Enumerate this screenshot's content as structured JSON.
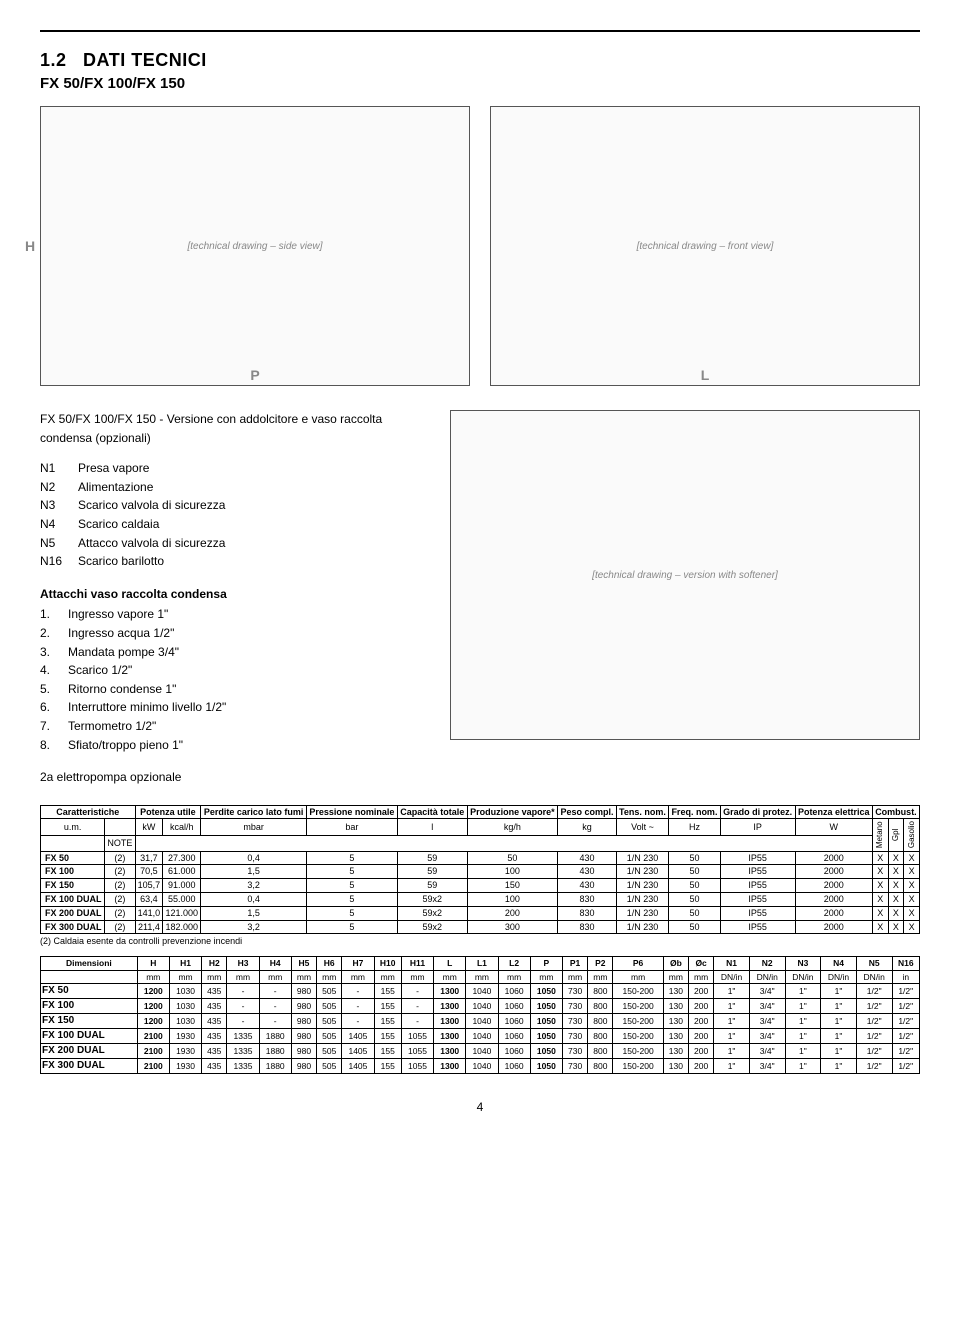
{
  "section_number": "1.2",
  "section_title": "DATI TECNICI",
  "subtitle": "FX 50/FX 100/FX 150",
  "version_line": "FX 50/FX 100/FX 150  - Versione con addolcitore e vaso raccolta condensa (opzionali)",
  "n_legend": [
    {
      "k": "N1",
      "v": "Presa vapore"
    },
    {
      "k": "N2",
      "v": "Alimentazione"
    },
    {
      "k": "N3",
      "v": "Scarico valvola di sicurezza"
    },
    {
      "k": "N4",
      "v": "Scarico caldaia"
    },
    {
      "k": "N5",
      "v": "Attacco valvola di sicurezza"
    },
    {
      "k": "N16",
      "v": "Scarico barilotto"
    }
  ],
  "attacchi_heading": "Attacchi vaso raccolta condensa",
  "attacchi_list": [
    {
      "k": "1.",
      "v": "Ingresso vapore 1\""
    },
    {
      "k": "2.",
      "v": "Ingresso acqua 1/2\""
    },
    {
      "k": "3.",
      "v": "Mandata pompe 3/4\""
    },
    {
      "k": "4.",
      "v": "Scarico 1/2\""
    },
    {
      "k": "5.",
      "v": "Ritorno condense 1\""
    },
    {
      "k": "6.",
      "v": "Interruttore minimo livello 1/2\""
    },
    {
      "k": "7.",
      "v": "Termometro 1/2\""
    },
    {
      "k": "8.",
      "v": "Sfiato/troppo pieno 1\""
    }
  ],
  "pump_note": "2a elettropompa opzionale",
  "diagram_labels": {
    "P": "P",
    "L": "L",
    "H": "H"
  },
  "char_table": {
    "headers": {
      "c1": "Caratteristiche",
      "c2": "Potenza utile",
      "c3": "Perdite carico lato fumi",
      "c4": "Pressione nominale",
      "c5": "Capacità totale",
      "c6": "Produzione vapore*",
      "c7": "Peso compl.",
      "c8": "Tens. nom.",
      "c9": "Freq. nom.",
      "c10": "Grado di protez.",
      "c11": "Potenza elettrica",
      "c12": "Combust."
    },
    "units": {
      "u1": "u.m.",
      "u2a": "kW",
      "u2b": "kcal/h",
      "u3": "mbar",
      "u4": "bar",
      "u5": "l",
      "u6": "kg/h",
      "u7": "kg",
      "u8": "Volt ~",
      "u9": "Hz",
      "u10": "IP",
      "u11": "W"
    },
    "fuel_cols": [
      "Metano",
      "Gpl",
      "Gasolio"
    ],
    "note_label": "NOTE",
    "rows": [
      {
        "m": "FX 50",
        "note": "(2)",
        "kw": "31,7",
        "kcal": "27.300",
        "pc": "0,4",
        "pn": "5",
        "ct": "59",
        "pv": "50",
        "pc2": "430",
        "tn": "1/N 230",
        "fn": "50",
        "ip": "IP55",
        "pe": "2000",
        "f1": "X",
        "f2": "X",
        "f3": "X"
      },
      {
        "m": "FX 100",
        "note": "(2)",
        "kw": "70,5",
        "kcal": "61.000",
        "pc": "1,5",
        "pn": "5",
        "ct": "59",
        "pv": "100",
        "pc2": "430",
        "tn": "1/N 230",
        "fn": "50",
        "ip": "IP55",
        "pe": "2000",
        "f1": "X",
        "f2": "X",
        "f3": "X"
      },
      {
        "m": "FX 150",
        "note": "(2)",
        "kw": "105,7",
        "kcal": "91.000",
        "pc": "3,2",
        "pn": "5",
        "ct": "59",
        "pv": "150",
        "pc2": "430",
        "tn": "1/N 230",
        "fn": "50",
        "ip": "IP55",
        "pe": "2000",
        "f1": "X",
        "f2": "X",
        "f3": "X"
      },
      {
        "m": "FX 100 DUAL",
        "note": "(2)",
        "kw": "63,4",
        "kcal": "55.000",
        "pc": "0,4",
        "pn": "5",
        "ct": "59x2",
        "pv": "100",
        "pc2": "830",
        "tn": "1/N 230",
        "fn": "50",
        "ip": "IP55",
        "pe": "2000",
        "f1": "X",
        "f2": "X",
        "f3": "X"
      },
      {
        "m": "FX 200 DUAL",
        "note": "(2)",
        "kw": "141,0",
        "kcal": "121.000",
        "pc": "1,5",
        "pn": "5",
        "ct": "59x2",
        "pv": "200",
        "pc2": "830",
        "tn": "1/N 230",
        "fn": "50",
        "ip": "IP55",
        "pe": "2000",
        "f1": "X",
        "f2": "X",
        "f3": "X"
      },
      {
        "m": "FX 300 DUAL",
        "note": "(2)",
        "kw": "211,4",
        "kcal": "182.000",
        "pc": "3,2",
        "pn": "5",
        "ct": "59x2",
        "pv": "300",
        "pc2": "830",
        "tn": "1/N 230",
        "fn": "50",
        "ip": "IP55",
        "pe": "2000",
        "f1": "X",
        "f2": "X",
        "f3": "X"
      }
    ],
    "footnote": "(2) Caldaia esente da controlli prevenzione incendi"
  },
  "dim_table": {
    "label": "Dimensioni",
    "cols": [
      "H",
      "H1",
      "H2",
      "H3",
      "H4",
      "H5",
      "H6",
      "H7",
      "H10",
      "H11",
      "L",
      "L1",
      "L2",
      "P",
      "P1",
      "P2",
      "P6",
      "Øb",
      "Øc",
      "N1",
      "N2",
      "N3",
      "N4",
      "N5",
      "N16"
    ],
    "units": [
      "mm",
      "mm",
      "mm",
      "mm",
      "mm",
      "mm",
      "mm",
      "mm",
      "mm",
      "mm",
      "mm",
      "mm",
      "mm",
      "mm",
      "mm",
      "mm",
      "mm",
      "mm",
      "mm",
      "DN/in",
      "DN/in",
      "DN/in",
      "DN/in",
      "DN/in",
      "in"
    ],
    "rows": [
      {
        "m": "FX 50",
        "v": [
          "1200",
          "1030",
          "435",
          "-",
          "-",
          "980",
          "505",
          "-",
          "155",
          "-",
          "1300",
          "1040",
          "1060",
          "1050",
          "730",
          "800",
          "150-200",
          "130",
          "200",
          "1\"",
          "3/4\"",
          "1\"",
          "1\"",
          "1/2\"",
          "1/2\""
        ]
      },
      {
        "m": "FX 100",
        "v": [
          "1200",
          "1030",
          "435",
          "-",
          "-",
          "980",
          "505",
          "-",
          "155",
          "-",
          "1300",
          "1040",
          "1060",
          "1050",
          "730",
          "800",
          "150-200",
          "130",
          "200",
          "1\"",
          "3/4\"",
          "1\"",
          "1\"",
          "1/2\"",
          "1/2\""
        ]
      },
      {
        "m": "FX 150",
        "v": [
          "1200",
          "1030",
          "435",
          "-",
          "-",
          "980",
          "505",
          "-",
          "155",
          "-",
          "1300",
          "1040",
          "1060",
          "1050",
          "730",
          "800",
          "150-200",
          "130",
          "200",
          "1\"",
          "3/4\"",
          "1\"",
          "1\"",
          "1/2\"",
          "1/2\""
        ]
      },
      {
        "m": "FX 100 DUAL",
        "v": [
          "2100",
          "1930",
          "435",
          "1335",
          "1880",
          "980",
          "505",
          "1405",
          "155",
          "1055",
          "1300",
          "1040",
          "1060",
          "1050",
          "730",
          "800",
          "150-200",
          "130",
          "200",
          "1\"",
          "3/4\"",
          "1\"",
          "1\"",
          "1/2\"",
          "1/2\""
        ]
      },
      {
        "m": "FX 200 DUAL",
        "v": [
          "2100",
          "1930",
          "435",
          "1335",
          "1880",
          "980",
          "505",
          "1405",
          "155",
          "1055",
          "1300",
          "1040",
          "1060",
          "1050",
          "730",
          "800",
          "150-200",
          "130",
          "200",
          "1\"",
          "3/4\"",
          "1\"",
          "1\"",
          "1/2\"",
          "1/2\""
        ]
      },
      {
        "m": "FX 300 DUAL",
        "v": [
          "2100",
          "1930",
          "435",
          "1335",
          "1880",
          "980",
          "505",
          "1405",
          "155",
          "1055",
          "1300",
          "1040",
          "1060",
          "1050",
          "730",
          "800",
          "150-200",
          "130",
          "200",
          "1\"",
          "3/4\"",
          "1\"",
          "1\"",
          "1/2\"",
          "1/2\""
        ]
      }
    ]
  },
  "page_number": "4"
}
